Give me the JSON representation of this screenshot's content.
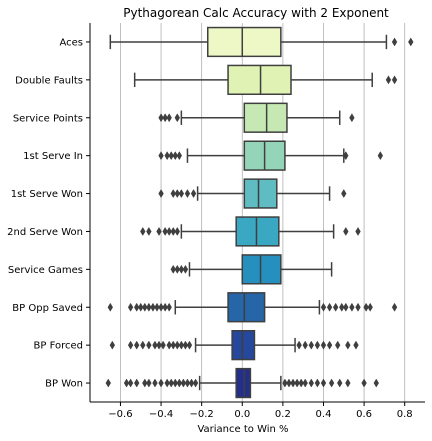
{
  "chart_data": {
    "type": "boxplot",
    "orientation": "horizontal",
    "title": "Pythagorean Calc Accuracy with 2 Exponent",
    "xlabel": "Variance to Win %",
    "ylabel": "",
    "xlim": [
      -0.75,
      0.9
    ],
    "xticks": [
      -0.6,
      -0.4,
      -0.2,
      0.0,
      0.2,
      0.4,
      0.6,
      0.8
    ],
    "xtick_labels": [
      "−0.6",
      "−0.4",
      "−0.2",
      "0.0",
      "0.2",
      "0.4",
      "0.6",
      "0.8"
    ],
    "grid": "vertical",
    "categories": [
      "Aces",
      "Double Faults",
      "Service Points",
      "1st Serve In",
      "1st Serve Won",
      "2nd Serve Won",
      "Service Games",
      "BP Opp Saved",
      "BP Forced",
      "BP Won"
    ],
    "boxes": [
      {
        "whisker_low": -0.65,
        "q1": -0.17,
        "median": 0.0,
        "q3": 0.19,
        "whisker_high": 0.71,
        "color": "#edf8c6",
        "outliers": [
          0.75,
          0.83
        ]
      },
      {
        "whisker_low": -0.53,
        "q1": -0.07,
        "median": 0.09,
        "q3": 0.24,
        "whisker_high": 0.64,
        "color": "#e0f3b4",
        "outliers": [
          0.72,
          0.75
        ]
      },
      {
        "whisker_low": -0.3,
        "q1": 0.01,
        "median": 0.12,
        "q3": 0.22,
        "whisker_high": 0.48,
        "color": "#c6e9b4",
        "outliers": [
          -0.38,
          -0.4,
          -0.36,
          -0.32,
          0.54
        ]
      },
      {
        "whisker_low": -0.27,
        "q1": 0.01,
        "median": 0.11,
        "q3": 0.21,
        "whisker_high": 0.5,
        "color": "#94d4b9",
        "outliers": [
          -0.4,
          -0.37,
          -0.35,
          -0.33,
          -0.31,
          0.51,
          0.68
        ]
      },
      {
        "whisker_low": -0.22,
        "q1": 0.01,
        "median": 0.08,
        "q3": 0.17,
        "whisker_high": 0.43,
        "color": "#5ebcc2",
        "outliers": [
          -0.4,
          -0.34,
          -0.32,
          -0.3,
          -0.27,
          -0.24,
          0.5
        ]
      },
      {
        "whisker_low": -0.3,
        "q1": -0.03,
        "median": 0.07,
        "q3": 0.18,
        "whisker_high": 0.45,
        "color": "#3aa8c2",
        "outliers": [
          -0.49,
          -0.46,
          -0.41,
          -0.38,
          -0.36,
          -0.34,
          -0.32,
          0.51,
          0.57
        ]
      },
      {
        "whisker_low": -0.26,
        "q1": 0.0,
        "median": 0.09,
        "q3": 0.19,
        "whisker_high": 0.44,
        "color": "#2590bd",
        "outliers": [
          -0.34,
          -0.32,
          -0.3,
          -0.28
        ]
      },
      {
        "whisker_low": -0.33,
        "q1": -0.07,
        "median": 0.01,
        "q3": 0.11,
        "whisker_high": 0.38,
        "color": "#2565a8",
        "outliers": [
          -0.65,
          -0.55,
          -0.52,
          -0.5,
          -0.48,
          -0.46,
          -0.44,
          -0.42,
          -0.4,
          -0.38,
          -0.36,
          0.4,
          0.43,
          0.46,
          0.49,
          0.51,
          0.54,
          0.57,
          0.61,
          0.63,
          0.75
        ]
      },
      {
        "whisker_low": -0.23,
        "q1": -0.05,
        "median": 0.0,
        "q3": 0.06,
        "whisker_high": 0.26,
        "color": "#25479c",
        "outliers": [
          -0.64,
          -0.55,
          -0.52,
          -0.49,
          -0.46,
          -0.43,
          -0.41,
          -0.39,
          -0.36,
          -0.34,
          -0.32,
          -0.3,
          -0.28,
          -0.26,
          0.28,
          0.31,
          0.34,
          0.37,
          0.4,
          0.43,
          0.47,
          0.52,
          0.56
        ]
      },
      {
        "whisker_low": -0.21,
        "q1": -0.03,
        "median": 0.01,
        "q3": 0.04,
        "whisker_high": 0.19,
        "color": "#232f8a",
        "outliers": [
          -0.66,
          -0.57,
          -0.55,
          -0.52,
          -0.48,
          -0.46,
          -0.43,
          -0.4,
          -0.37,
          -0.35,
          -0.33,
          -0.31,
          -0.29,
          -0.27,
          -0.25,
          -0.23,
          0.21,
          0.23,
          0.25,
          0.27,
          0.29,
          0.31,
          0.34,
          0.37,
          0.4,
          0.44,
          0.48,
          0.52,
          0.6,
          0.66
        ]
      }
    ]
  }
}
